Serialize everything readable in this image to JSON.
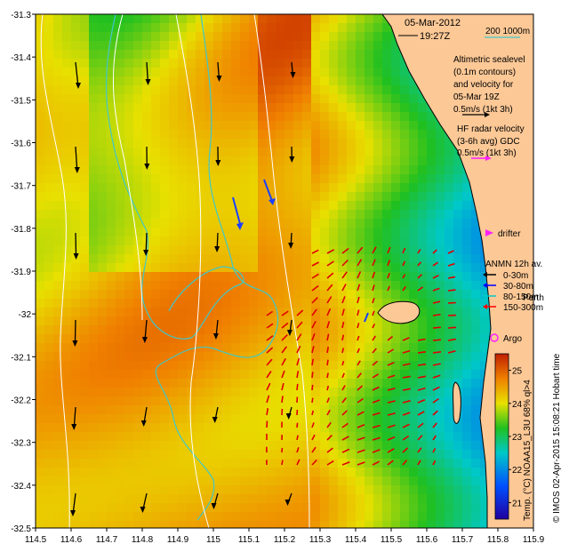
{
  "header": {
    "date": "05-Mar-2012",
    "time": "19:27Z",
    "bathymetry_legend": "200  1000m"
  },
  "legend": {
    "altimetric_lines": [
      "Altimetric sealevel",
      "(0.1m contours)",
      "and velocity for",
      "05-Mar 19Z"
    ],
    "altimetric_scale": "0.5m/s (1kt 3h)",
    "hf_lines": [
      "HF radar velocity",
      "(3-6h avg) GDC"
    ],
    "hf_scale": "0.5m/s (1kt 3h)",
    "drifter": "drifter",
    "anmn_title": "ANMN 12h av.",
    "anmn_items": [
      {
        "label": "0-30m",
        "color": "#000000"
      },
      {
        "label": "30-80m",
        "color": "#0000ff"
      },
      {
        "label": "80-150m",
        "color": "#00c8c8"
      },
      {
        "label": "150-300m",
        "color": "#ff0000"
      }
    ],
    "argo": "Argo",
    "place_label": "Perth"
  },
  "colorbar": {
    "title": "Temp. (°C) NOAA15_L3U 68% ql>4",
    "min": 20.5,
    "max": 25.5,
    "ticks": [
      21,
      22,
      23,
      24,
      25
    ]
  },
  "credit": "© IMOS 02-Apr-2015 15:08:21 Hobart time",
  "axes": {
    "x_ticks": [
      114.5,
      114.6,
      114.7,
      114.8,
      114.9,
      115,
      115.1,
      115.2,
      115.3,
      115.4,
      115.5,
      115.6,
      115.7,
      115.8,
      115.9
    ],
    "y_ticks": [
      -31.3,
      -31.4,
      -31.5,
      -31.6,
      -31.7,
      -31.8,
      -31.9,
      -32,
      -32.1,
      -32.2,
      -32.3,
      -32.4,
      -32.5
    ],
    "x_range": [
      114.5,
      115.9
    ],
    "y_range": [
      -32.5,
      -31.3
    ]
  },
  "colors": {
    "land": "#fcc896",
    "bathy_200": "#40c8c8",
    "bathy_1000": "#40c8c8",
    "sealevel_contour": "#ffffff",
    "altimetry_arrow": "#000000",
    "hf_arrow": "#e00000",
    "anmn_blue": "#1a40ff",
    "drifter": "#ff20ff",
    "argo": "#ff20ff"
  }
}
